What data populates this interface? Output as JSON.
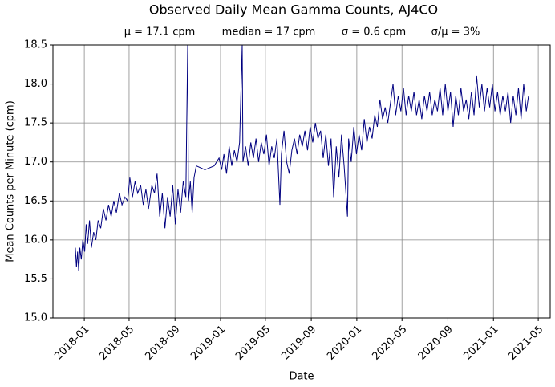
{
  "chart_data": {
    "type": "line",
    "title": "Observed Daily Mean Gamma Counts, AJ4CO",
    "annotations": [
      "μ = 17.1 cpm",
      "median = 17 cpm",
      "σ = 0.6 cpm",
      "σ/μ = 3%"
    ],
    "x_label": "Date",
    "y_label": "Mean Counts per Minute (cpm)",
    "xlim": [
      "2017-10-09",
      "2021-06-02"
    ],
    "xticks": [
      {
        "value": "2018-01-01",
        "label": "2018-01"
      },
      {
        "value": "2018-05-01",
        "label": "2018-05"
      },
      {
        "value": "2018-09-01",
        "label": "2018-09"
      },
      {
        "value": "2019-01-01",
        "label": "2019-01"
      },
      {
        "value": "2019-05-01",
        "label": "2019-05"
      },
      {
        "value": "2019-09-01",
        "label": "2019-09"
      },
      {
        "value": "2020-01-01",
        "label": "2020-01"
      },
      {
        "value": "2020-05-01",
        "label": "2020-05"
      },
      {
        "value": "2020-09-01",
        "label": "2020-09"
      },
      {
        "value": "2021-01-01",
        "label": "2021-01"
      },
      {
        "value": "2021-05-01",
        "label": "2021-05"
      }
    ],
    "ylim": [
      15.0,
      18.5
    ],
    "yticks": [
      {
        "value": 15,
        "label": "15.0"
      },
      15.5,
      {
        "value": 16,
        "label": "16.0"
      },
      16.5,
      {
        "value": 17,
        "label": "17.0"
      },
      17.5,
      {
        "value": 18,
        "label": "18.0"
      },
      18.5
    ],
    "grid": true,
    "x": [
      "2017-12-08",
      "2017-12-11",
      "2017-12-14",
      "2017-12-17",
      "2017-12-20",
      "2017-12-24",
      "2017-12-28",
      "2018-01-02",
      "2018-01-06",
      "2018-01-10",
      "2018-01-15",
      "2018-01-20",
      "2018-01-26",
      "2018-02-01",
      "2018-02-07",
      "2018-02-14",
      "2018-02-21",
      "2018-02-28",
      "2018-03-07",
      "2018-03-14",
      "2018-03-21",
      "2018-03-28",
      "2018-04-05",
      "2018-04-12",
      "2018-04-20",
      "2018-04-27",
      "2018-05-03",
      "2018-05-10",
      "2018-05-17",
      "2018-05-24",
      "2018-06-01",
      "2018-06-08",
      "2018-06-15",
      "2018-06-22",
      "2018-07-01",
      "2018-07-08",
      "2018-07-15",
      "2018-07-22",
      "2018-07-29",
      "2018-08-05",
      "2018-08-12",
      "2018-08-19",
      "2018-08-26",
      "2018-09-02",
      "2018-09-09",
      "2018-09-16",
      "2018-09-23",
      "2018-09-30",
      "2018-10-05",
      "2018-10-07",
      "2018-10-12",
      "2018-10-17",
      "2018-10-22",
      "2018-10-28",
      "2018-11-20",
      "2018-12-15",
      "2018-12-28",
      "2019-01-04",
      "2019-01-10",
      "2019-01-17",
      "2019-01-24",
      "2019-01-31",
      "2019-02-07",
      "2019-02-14",
      "2019-02-21",
      "2019-02-28",
      "2019-03-02",
      "2019-03-09",
      "2019-03-16",
      "2019-03-23",
      "2019-03-30",
      "2019-04-06",
      "2019-04-13",
      "2019-04-20",
      "2019-04-27",
      "2019-05-04",
      "2019-05-11",
      "2019-05-18",
      "2019-05-25",
      "2019-06-01",
      "2019-06-09",
      "2019-06-13",
      "2019-06-20",
      "2019-06-27",
      "2019-07-04",
      "2019-07-11",
      "2019-07-18",
      "2019-07-25",
      "2019-08-01",
      "2019-08-08",
      "2019-08-15",
      "2019-08-22",
      "2019-08-29",
      "2019-09-05",
      "2019-09-12",
      "2019-09-19",
      "2019-09-26",
      "2019-10-03",
      "2019-10-10",
      "2019-10-17",
      "2019-10-24",
      "2019-10-31",
      "2019-11-07",
      "2019-11-14",
      "2019-11-21",
      "2019-11-28",
      "2019-12-07",
      "2019-12-10",
      "2019-12-17",
      "2019-12-24",
      "2019-12-31",
      "2020-01-07",
      "2020-01-14",
      "2020-01-21",
      "2020-01-28",
      "2020-02-04",
      "2020-02-11",
      "2020-02-18",
      "2020-02-25",
      "2020-03-03",
      "2020-03-10",
      "2020-03-17",
      "2020-03-24",
      "2020-03-31",
      "2020-04-07",
      "2020-04-14",
      "2020-04-21",
      "2020-04-28",
      "2020-05-05",
      "2020-05-12",
      "2020-05-19",
      "2020-05-26",
      "2020-06-02",
      "2020-06-09",
      "2020-06-16",
      "2020-06-23",
      "2020-06-30",
      "2020-07-07",
      "2020-07-14",
      "2020-07-21",
      "2020-07-28",
      "2020-08-04",
      "2020-08-11",
      "2020-08-18",
      "2020-08-25",
      "2020-09-01",
      "2020-09-08",
      "2020-09-15",
      "2020-09-22",
      "2020-09-29",
      "2020-10-06",
      "2020-10-13",
      "2020-10-20",
      "2020-10-27",
      "2020-11-03",
      "2020-11-10",
      "2020-11-17",
      "2020-11-24",
      "2020-12-01",
      "2020-12-08",
      "2020-12-15",
      "2020-12-22",
      "2020-12-29",
      "2021-01-05",
      "2021-01-12",
      "2021-01-19",
      "2021-01-26",
      "2021-02-02",
      "2021-02-09",
      "2021-02-16",
      "2021-02-23",
      "2021-03-02",
      "2021-03-09",
      "2021-03-16",
      "2021-03-23",
      "2021-03-30",
      "2021-04-05"
    ],
    "series": [
      {
        "color": "#000080",
        "values": [
          15.9,
          15.65,
          15.85,
          15.6,
          15.9,
          15.75,
          16.0,
          15.85,
          16.2,
          15.95,
          16.25,
          15.9,
          16.1,
          16.0,
          16.25,
          16.15,
          16.4,
          16.25,
          16.45,
          16.3,
          16.5,
          16.35,
          16.6,
          16.45,
          16.55,
          16.5,
          16.8,
          16.55,
          16.75,
          16.6,
          16.7,
          16.45,
          16.65,
          16.4,
          16.7,
          16.6,
          16.85,
          16.3,
          16.6,
          16.15,
          16.55,
          16.3,
          16.7,
          16.2,
          16.65,
          16.35,
          16.75,
          16.55,
          18.5,
          16.5,
          16.75,
          16.35,
          16.8,
          16.95,
          16.9,
          16.95,
          17.05,
          16.9,
          17.1,
          16.85,
          17.2,
          16.95,
          17.15,
          17.0,
          17.25,
          18.5,
          17.0,
          17.2,
          16.95,
          17.25,
          17.05,
          17.3,
          17.0,
          17.25,
          17.1,
          17.35,
          16.95,
          17.2,
          17.05,
          17.3,
          16.45,
          17.1,
          17.4,
          17.0,
          16.85,
          17.15,
          17.3,
          17.1,
          17.35,
          17.2,
          17.4,
          17.15,
          17.45,
          17.25,
          17.5,
          17.3,
          17.4,
          17.05,
          17.35,
          16.95,
          17.3,
          16.55,
          17.2,
          16.8,
          17.35,
          16.95,
          16.3,
          17.3,
          17.0,
          17.45,
          17.1,
          17.35,
          17.15,
          17.55,
          17.25,
          17.45,
          17.3,
          17.6,
          17.45,
          17.8,
          17.55,
          17.7,
          17.5,
          17.75,
          18.0,
          17.6,
          17.85,
          17.65,
          17.95,
          17.6,
          17.85,
          17.65,
          17.9,
          17.6,
          17.8,
          17.55,
          17.85,
          17.65,
          17.9,
          17.6,
          17.8,
          17.65,
          17.95,
          17.6,
          18.0,
          17.65,
          17.9,
          17.45,
          17.85,
          17.6,
          17.95,
          17.65,
          17.8,
          17.55,
          17.9,
          17.6,
          18.1,
          17.7,
          18.0,
          17.65,
          17.95,
          17.7,
          18.0,
          17.65,
          17.9,
          17.6,
          17.85,
          17.65,
          17.9,
          17.5,
          17.85,
          17.6,
          17.95,
          17.55,
          18.0,
          17.65,
          17.85
        ]
      }
    ]
  }
}
